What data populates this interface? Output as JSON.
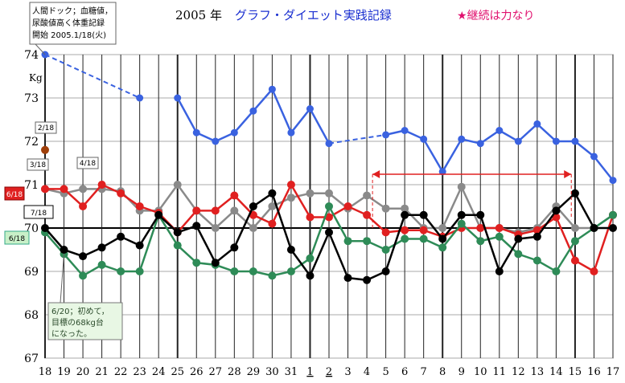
{
  "header": {
    "year": "2005 年",
    "title": "グラフ・ダイエット実践記録",
    "slogan": "★継続は力なり"
  },
  "notes": {
    "start": [
      "人間ドック；血糖値，",
      "尿酸値高く体重記録",
      "開始 2005.1/18(火)"
    ],
    "goal": [
      "6/20；初めて，",
      "目標の68kg台",
      "になった。"
    ]
  },
  "colors": {
    "jan": "#3a62e0",
    "feb": "#8a8a8a",
    "mar": "#1d1d1d",
    "apr": "#e02020",
    "jun": "#2e8b57",
    "jul": "#000000"
  },
  "chart_data": {
    "type": "line",
    "ylabel": "Kg",
    "ylim": [
      67,
      74
    ],
    "yticks": [
      67,
      68,
      69,
      70,
      71,
      72,
      73,
      74
    ],
    "categories": [
      "18",
      "19",
      "20",
      "21",
      "22",
      "23",
      "24",
      "25",
      "26",
      "27",
      "28",
      "29",
      "30",
      "31",
      "1",
      "2",
      "3",
      "4",
      "5",
      "6",
      "7",
      "8",
      "9",
      "10",
      "11",
      "12",
      "13",
      "14",
      "15",
      "16",
      "17"
    ],
    "series": [
      {
        "name": "1/18",
        "values": [
          74.0,
          null,
          null,
          null,
          null,
          73.0,
          null,
          73.0,
          72.2,
          72.0,
          72.2,
          72.7,
          73.2,
          72.2,
          72.75,
          71.95,
          null,
          null,
          72.15,
          72.25,
          72.05,
          71.3,
          72.05,
          71.95,
          72.25,
          72.0,
          72.4,
          72.0,
          72.0,
          71.65,
          71.1
        ]
      },
      {
        "name": "2/18",
        "values": [
          71.8,
          null,
          null,
          null,
          null,
          null,
          null,
          null,
          null,
          null,
          null,
          null,
          null,
          null,
          null,
          null,
          null,
          null,
          null,
          null,
          null,
          null,
          null,
          null,
          null,
          null,
          null,
          null,
          null,
          null,
          null
        ]
      },
      {
        "name": "3/18",
        "values": [
          70.9,
          70.8,
          70.9,
          70.9,
          70.85,
          70.4,
          70.4,
          71.0,
          70.4,
          70.0,
          70.4,
          70.0,
          70.5,
          70.7,
          70.8,
          70.8,
          70.45,
          70.75,
          70.45,
          70.45,
          70.0,
          70.0,
          70.95,
          70.0,
          70.0,
          69.9,
          70.0,
          70.5,
          70.0,
          70.0,
          70.3
        ]
      },
      {
        "name": "4/18",
        "values": [
          70.9,
          70.9,
          70.5,
          71.0,
          70.8,
          70.5,
          70.35,
          69.9,
          70.4,
          70.4,
          70.75,
          70.3,
          70.1,
          71.0,
          70.25,
          70.25,
          70.5,
          70.3,
          69.9,
          69.95,
          69.95,
          69.8,
          70.0,
          70.0,
          70.0,
          69.85,
          69.95,
          70.25,
          69.25,
          69.0,
          70.3
        ]
      },
      {
        "name": "6/18",
        "values": [
          69.9,
          69.4,
          68.9,
          69.15,
          69.0,
          69.0,
          70.3,
          69.6,
          69.2,
          69.15,
          69.0,
          69.0,
          68.9,
          69.0,
          69.3,
          70.5,
          69.7,
          69.7,
          69.5,
          69.75,
          69.75,
          69.55,
          70.1,
          69.7,
          69.8,
          69.4,
          69.25,
          69.0,
          69.7,
          70.0,
          70.3
        ]
      },
      {
        "name": "7/18",
        "values": [
          70.0,
          69.5,
          69.35,
          69.55,
          69.8,
          69.6,
          70.3,
          69.9,
          70.05,
          69.2,
          69.55,
          70.5,
          70.8,
          69.5,
          68.9,
          69.9,
          68.85,
          68.8,
          69.0,
          70.3,
          70.3,
          69.75,
          70.3,
          70.3,
          69.0,
          69.75,
          69.8,
          70.4,
          70.8,
          70.0,
          70.0
        ]
      }
    ]
  }
}
